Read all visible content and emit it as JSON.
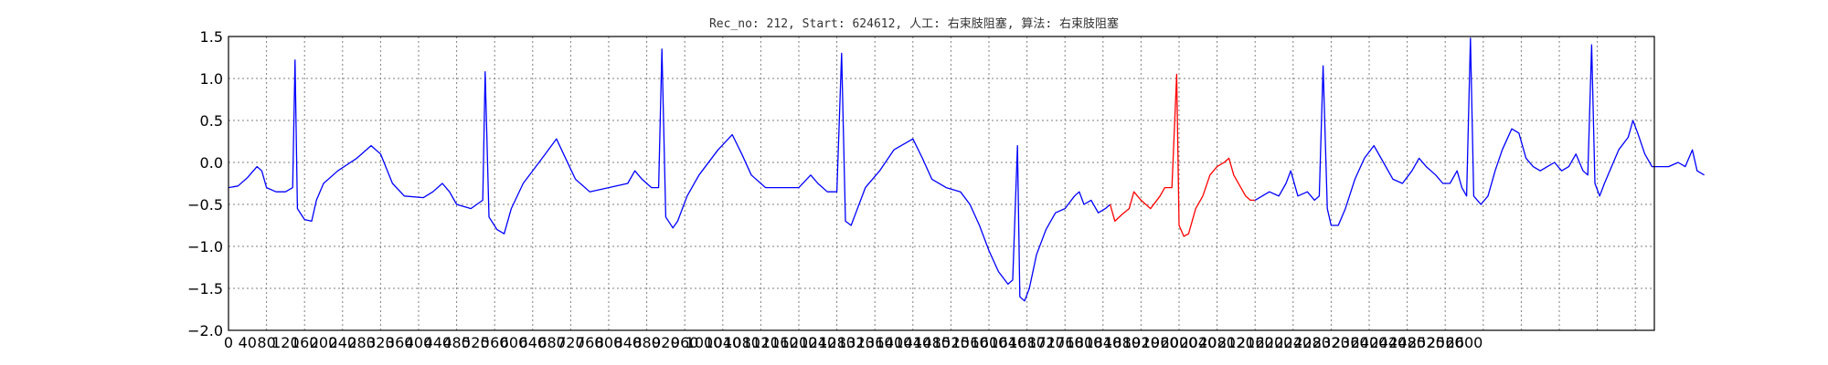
{
  "chart_data": {
    "type": "line",
    "title": "Rec_no: 212, Start: 624612, 人工: 右束肢阻塞, 算法: 右束肢阻塞",
    "xlabel": "",
    "ylabel": "",
    "xlim": [
      0,
      3000
    ],
    "ylim": [
      -2.0,
      1.5
    ],
    "grid": true,
    "y_ticks": [
      -2.0,
      -1.5,
      -1.0,
      -0.5,
      0.0,
      0.5,
      1.0,
      1.5
    ],
    "y_tick_labels": [
      "−2.0",
      "−1.5",
      "−1.0",
      "−0.5",
      "0.0",
      "0.5",
      "1.0",
      "1.5"
    ],
    "x_ticks": [
      0,
      40,
      80,
      120,
      160,
      200,
      240,
      280,
      320,
      360,
      400,
      440,
      480,
      520,
      560,
      600,
      640,
      680,
      720,
      760,
      800,
      840,
      880,
      920,
      960,
      1000,
      1040,
      1080,
      1120,
      1160,
      1200,
      1240,
      1280,
      1320,
      1360,
      1400,
      1440,
      1480,
      1520,
      1560,
      1600,
      1640,
      1680,
      1720,
      1760,
      1800,
      1840,
      1880,
      1920,
      1960,
      2000,
      2040,
      2080,
      2120,
      2160,
      2200,
      2240,
      2280,
      2320,
      2360,
      2400,
      2440,
      2480,
      2520,
      2560,
      2600
    ],
    "x_tick_labels": [
      "0",
      "40",
      "80",
      "120",
      "160",
      "200",
      "240",
      "280",
      "320",
      "360",
      "400",
      "440",
      "480",
      "520",
      "560",
      "600",
      "640",
      "680",
      "720",
      "760",
      "800",
      "840",
      "880",
      "920",
      "960",
      "1000",
      "1040",
      "1080",
      "1120",
      "1160",
      "1200",
      "1240",
      "1280",
      "1320",
      "1360",
      "1400",
      "1440",
      "1480",
      "1520",
      "1560",
      "1600",
      "1640",
      "1680",
      "1720",
      "1760",
      "1800",
      "1840",
      "1880",
      "1920",
      "1960",
      "2000",
      "2040",
      "2080",
      "2120",
      "2160",
      "2200",
      "2240",
      "2280",
      "2320",
      "2360",
      "2400",
      "2440",
      "2480",
      "2520",
      "2560",
      "2600"
    ],
    "grid_x_every": 80,
    "series": [
      {
        "color": "#0000ff",
        "points": [
          [
            0,
            -0.3
          ],
          [
            20,
            -0.28
          ],
          [
            40,
            -0.18
          ],
          [
            60,
            -0.05
          ],
          [
            70,
            -0.1
          ],
          [
            80,
            -0.3
          ],
          [
            100,
            -0.35
          ],
          [
            120,
            -0.35
          ],
          [
            135,
            -0.3
          ],
          [
            140,
            1.22
          ],
          [
            145,
            -0.55
          ],
          [
            160,
            -0.68
          ],
          [
            175,
            -0.7
          ],
          [
            185,
            -0.45
          ],
          [
            200,
            -0.25
          ],
          [
            230,
            -0.1
          ],
          [
            270,
            0.05
          ],
          [
            300,
            0.2
          ],
          [
            320,
            0.1
          ],
          [
            345,
            -0.25
          ],
          [
            370,
            -0.4
          ],
          [
            410,
            -0.42
          ],
          [
            430,
            -0.35
          ],
          [
            450,
            -0.25
          ],
          [
            465,
            -0.35
          ],
          [
            480,
            -0.5
          ],
          [
            510,
            -0.55
          ],
          [
            535,
            -0.45
          ],
          [
            540,
            1.08
          ],
          [
            548,
            -0.65
          ],
          [
            565,
            -0.8
          ],
          [
            580,
            -0.85
          ],
          [
            595,
            -0.55
          ],
          [
            620,
            -0.25
          ],
          [
            660,
            0.05
          ],
          [
            690,
            0.28
          ],
          [
            705,
            0.1
          ],
          [
            730,
            -0.2
          ],
          [
            760,
            -0.35
          ],
          [
            800,
            -0.3
          ],
          [
            840,
            -0.25
          ],
          [
            855,
            -0.1
          ],
          [
            870,
            -0.2
          ],
          [
            890,
            -0.3
          ],
          [
            905,
            -0.3
          ],
          [
            912,
            1.35
          ],
          [
            920,
            -0.65
          ],
          [
            935,
            -0.78
          ],
          [
            945,
            -0.7
          ],
          [
            965,
            -0.4
          ],
          [
            990,
            -0.15
          ],
          [
            1030,
            0.15
          ],
          [
            1060,
            0.33
          ],
          [
            1080,
            0.1
          ],
          [
            1100,
            -0.15
          ],
          [
            1130,
            -0.3
          ],
          [
            1170,
            -0.3
          ],
          [
            1200,
            -0.3
          ],
          [
            1225,
            -0.15
          ],
          [
            1240,
            -0.25
          ],
          [
            1260,
            -0.35
          ],
          [
            1280,
            -0.35
          ],
          [
            1290,
            1.3
          ],
          [
            1298,
            -0.7
          ],
          [
            1310,
            -0.75
          ],
          [
            1320,
            -0.6
          ],
          [
            1340,
            -0.3
          ],
          [
            1370,
            -0.1
          ],
          [
            1400,
            0.15
          ],
          [
            1440,
            0.28
          ],
          [
            1460,
            0.05
          ],
          [
            1480,
            -0.2
          ],
          [
            1510,
            -0.3
          ],
          [
            1540,
            -0.35
          ],
          [
            1560,
            -0.5
          ],
          [
            1580,
            -0.75
          ],
          [
            1600,
            -1.05
          ],
          [
            1620,
            -1.3
          ],
          [
            1640,
            -1.45
          ],
          [
            1650,
            -1.4
          ],
          [
            1660,
            0.2
          ],
          [
            1665,
            -1.6
          ],
          [
            1675,
            -1.65
          ],
          [
            1685,
            -1.5
          ],
          [
            1700,
            -1.1
          ],
          [
            1720,
            -0.8
          ],
          [
            1740,
            -0.6
          ],
          [
            1760,
            -0.55
          ],
          [
            1780,
            -0.4
          ],
          [
            1790,
            -0.35
          ],
          [
            1800,
            -0.5
          ],
          [
            1815,
            -0.45
          ],
          [
            1830,
            -0.6
          ],
          [
            1845,
            -0.55
          ],
          [
            1855,
            -0.5
          ]
        ]
      },
      {
        "color": "#ff0000",
        "points": [
          [
            1855,
            -0.5
          ],
          [
            1865,
            -0.7
          ],
          [
            1880,
            -0.62
          ],
          [
            1895,
            -0.55
          ],
          [
            1905,
            -0.35
          ],
          [
            1920,
            -0.45
          ],
          [
            1940,
            -0.55
          ],
          [
            1960,
            -0.4
          ],
          [
            1970,
            -0.3
          ],
          [
            1985,
            -0.3
          ],
          [
            1995,
            1.05
          ],
          [
            2000,
            -0.75
          ],
          [
            2010,
            -0.88
          ],
          [
            2020,
            -0.85
          ],
          [
            2035,
            -0.55
          ],
          [
            2050,
            -0.4
          ],
          [
            2065,
            -0.15
          ],
          [
            2080,
            -0.05
          ],
          [
            2095,
            0.0
          ],
          [
            2105,
            0.05
          ],
          [
            2115,
            -0.15
          ],
          [
            2130,
            -0.3
          ],
          [
            2140,
            -0.4
          ],
          [
            2150,
            -0.45
          ],
          [
            2160,
            -0.45
          ]
        ]
      },
      {
        "color": "#0000ff",
        "points": [
          [
            2160,
            -0.45
          ],
          [
            2175,
            -0.4
          ],
          [
            2190,
            -0.35
          ],
          [
            2210,
            -0.4
          ],
          [
            2225,
            -0.25
          ],
          [
            2235,
            -0.1
          ],
          [
            2250,
            -0.4
          ],
          [
            2270,
            -0.35
          ],
          [
            2285,
            -0.45
          ],
          [
            2295,
            -0.4
          ],
          [
            2303,
            1.15
          ],
          [
            2312,
            -0.55
          ],
          [
            2320,
            -0.75
          ],
          [
            2335,
            -0.75
          ],
          [
            2350,
            -0.55
          ],
          [
            2370,
            -0.2
          ],
          [
            2390,
            0.05
          ],
          [
            2410,
            0.2
          ],
          [
            2430,
            0.0
          ],
          [
            2450,
            -0.2
          ],
          [
            2470,
            -0.25
          ],
          [
            2490,
            -0.1
          ],
          [
            2505,
            0.05
          ],
          [
            2520,
            -0.05
          ],
          [
            2540,
            -0.15
          ],
          [
            2555,
            -0.25
          ],
          [
            2570,
            -0.25
          ],
          [
            2585,
            -0.1
          ],
          [
            2595,
            -0.3
          ],
          [
            2605,
            -0.4
          ],
          [
            2613,
            1.48
          ],
          [
            2620,
            -0.4
          ],
          [
            2635,
            -0.5
          ],
          [
            2650,
            -0.4
          ],
          [
            2665,
            -0.1
          ],
          [
            2680,
            0.15
          ],
          [
            2700,
            0.4
          ],
          [
            2715,
            0.35
          ],
          [
            2730,
            0.05
          ],
          [
            2745,
            -0.05
          ],
          [
            2760,
            -0.1
          ],
          [
            2775,
            -0.05
          ],
          [
            2790,
            0.0
          ],
          [
            2805,
            -0.1
          ],
          [
            2820,
            -0.05
          ],
          [
            2835,
            0.1
          ],
          [
            2850,
            -0.1
          ],
          [
            2860,
            -0.15
          ],
          [
            2868,
            1.4
          ],
          [
            2875,
            -0.25
          ],
          [
            2885,
            -0.4
          ],
          [
            2895,
            -0.25
          ],
          [
            2910,
            -0.05
          ],
          [
            2925,
            0.15
          ],
          [
            2945,
            0.3
          ],
          [
            2955,
            0.5
          ],
          [
            2965,
            0.35
          ],
          [
            2980,
            0.1
          ],
          [
            2995,
            -0.05
          ],
          [
            3010,
            -0.05
          ],
          [
            3030,
            -0.05
          ],
          [
            3050,
            0.0
          ],
          [
            3065,
            -0.05
          ],
          [
            3080,
            0.15
          ],
          [
            3090,
            -0.1
          ],
          [
            3105,
            -0.15
          ]
        ]
      }
    ]
  }
}
